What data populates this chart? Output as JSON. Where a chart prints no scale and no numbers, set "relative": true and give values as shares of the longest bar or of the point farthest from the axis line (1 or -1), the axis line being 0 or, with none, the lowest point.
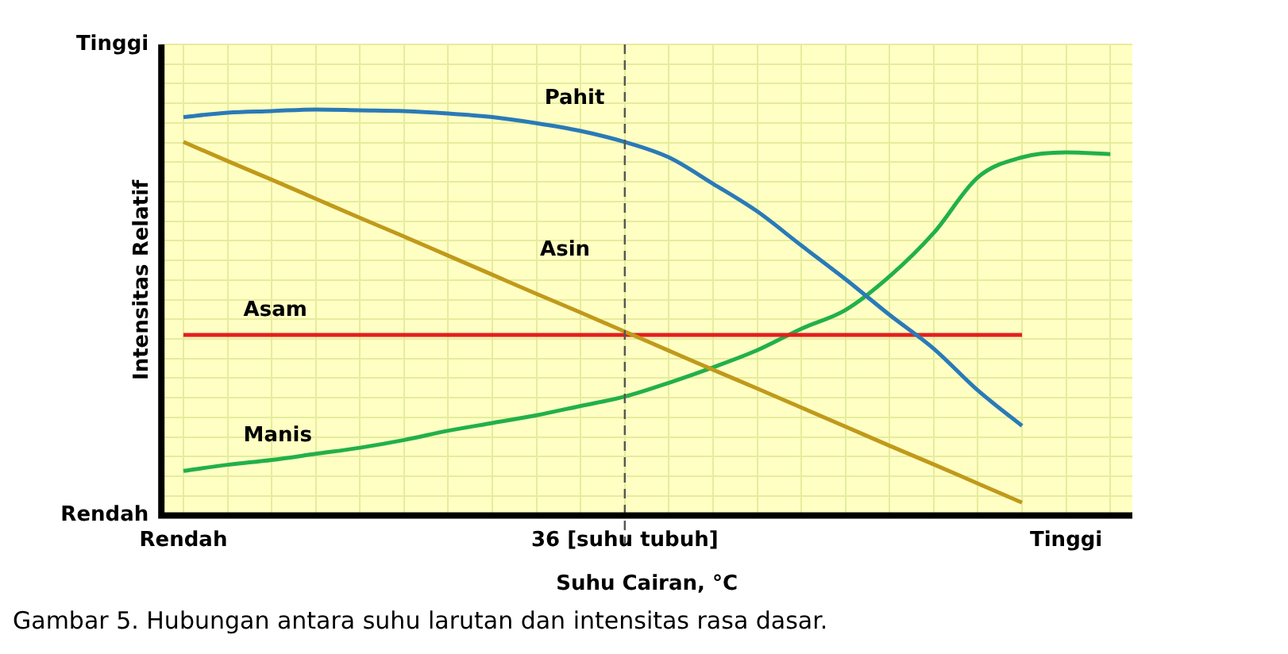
{
  "chart_data": {
    "type": "line",
    "relative": true,
    "xlabel": "Suhu Cairan, °C",
    "ylabel": "Intensitas Relatif",
    "categories": [
      "Rendah",
      null,
      null,
      null,
      null,
      null,
      null,
      null,
      null,
      null,
      "36 [suhu tubuh]",
      null,
      null,
      null,
      null,
      null,
      null,
      null,
      null,
      null,
      "Tinggi",
      null
    ],
    "series": [
      {
        "name": "Pahit",
        "color": "#2a7ab8",
        "values": [
          0.981,
          0.992,
          0.996,
          1.0,
          0.998,
          0.996,
          0.99,
          0.981,
          0.966,
          0.947,
          0.92,
          0.882,
          0.817,
          0.749,
          0.665,
          0.582,
          0.494,
          0.411,
          0.308,
          0.221,
          null,
          null
        ]
      },
      {
        "name": "Asin",
        "color": "#c09a1a",
        "values": [
          0.92,
          0.873,
          0.827,
          0.78,
          0.733,
          0.687,
          0.64,
          0.593,
          0.546,
          0.5,
          0.453,
          0.406,
          0.359,
          0.313,
          0.266,
          0.219,
          0.172,
          0.126,
          0.079,
          0.032,
          null,
          null
        ]
      },
      {
        "name": "Asam",
        "color": "#e31e1e",
        "values": [
          0.445,
          0.445,
          0.445,
          0.445,
          0.445,
          0.445,
          0.445,
          0.445,
          0.445,
          0.445,
          0.445,
          0.445,
          0.445,
          0.445,
          0.445,
          0.445,
          0.445,
          0.445,
          0.445,
          0.445,
          null,
          null
        ]
      },
      {
        "name": "Manis",
        "color": "#22b04a",
        "values": [
          0.11,
          0.125,
          0.137,
          0.152,
          0.167,
          0.186,
          0.209,
          0.228,
          0.247,
          0.27,
          0.293,
          0.327,
          0.365,
          0.407,
          0.46,
          0.506,
          0.589,
          0.696,
          0.833,
          0.882,
          0.894,
          0.89
        ]
      }
    ],
    "ref_lines": [
      {
        "axis": "x",
        "value": "36 [suhu tubuh]",
        "color": "#555555",
        "line_style": "dashed"
      }
    ],
    "annotations": [
      "Tinggi",
      "Rendah",
      "Gambar 5. Hubungan antara suhu larutan dan intensitas rasa dasar."
    ],
    "grid": true,
    "legend": false,
    "marker": "none",
    "line_style": "solid"
  }
}
